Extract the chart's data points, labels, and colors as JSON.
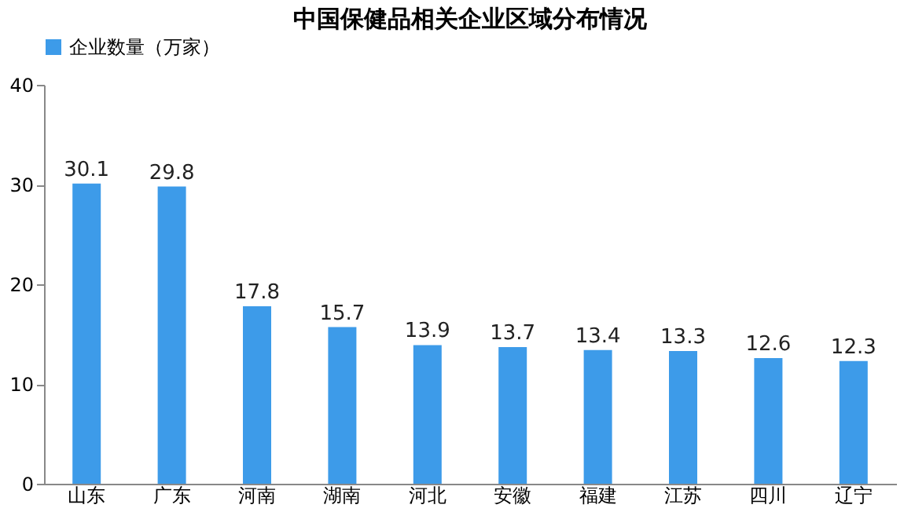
{
  "chart_data": {
    "type": "bar",
    "title": "中国保健品相关企业区域分布情况",
    "categories": [
      "山东",
      "广东",
      "河南",
      "湖南",
      "河北",
      "安徽",
      "福建",
      "江苏",
      "四川",
      "辽宁"
    ],
    "series": [
      {
        "name": "企业数量（万家）",
        "color": "#3d9be9",
        "values": [
          30.1,
          29.8,
          17.8,
          15.7,
          13.9,
          13.7,
          13.4,
          13.3,
          12.6,
          12.3
        ]
      }
    ],
    "ylim": [
      0,
      40
    ],
    "yticks": [
      0,
      10,
      20,
      30,
      40
    ],
    "grid": false,
    "legend": "top",
    "data_labels": true
  }
}
